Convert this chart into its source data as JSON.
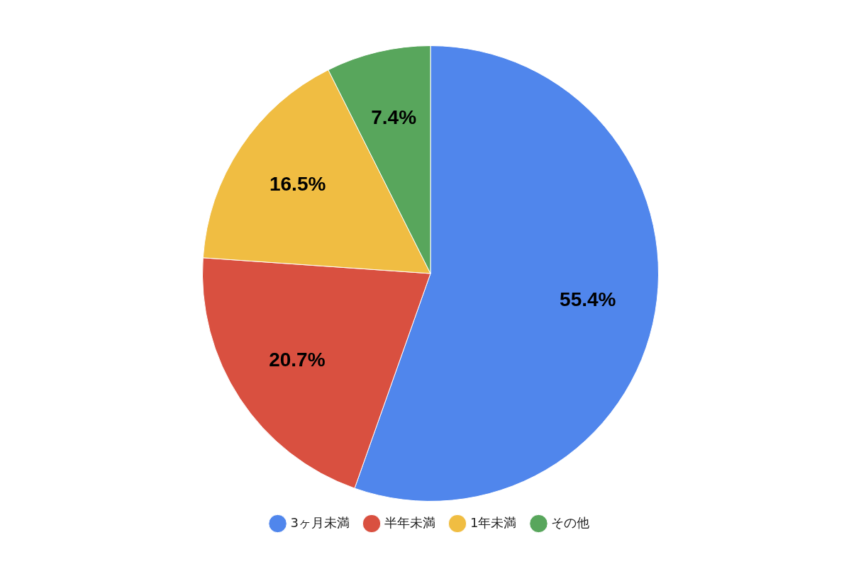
{
  "chart_data": {
    "type": "pie",
    "categories": [
      "3ヶ月未満",
      "半年未満",
      "1年未満",
      "その他"
    ],
    "values": [
      55.4,
      20.7,
      16.5,
      7.4
    ],
    "colors": [
      "#5086ec",
      "#d95040",
      "#f0bd42",
      "#58a65c"
    ],
    "value_labels": [
      "55.4%",
      "20.7%",
      "16.5%",
      "7.4%"
    ],
    "legend": "bottom"
  }
}
